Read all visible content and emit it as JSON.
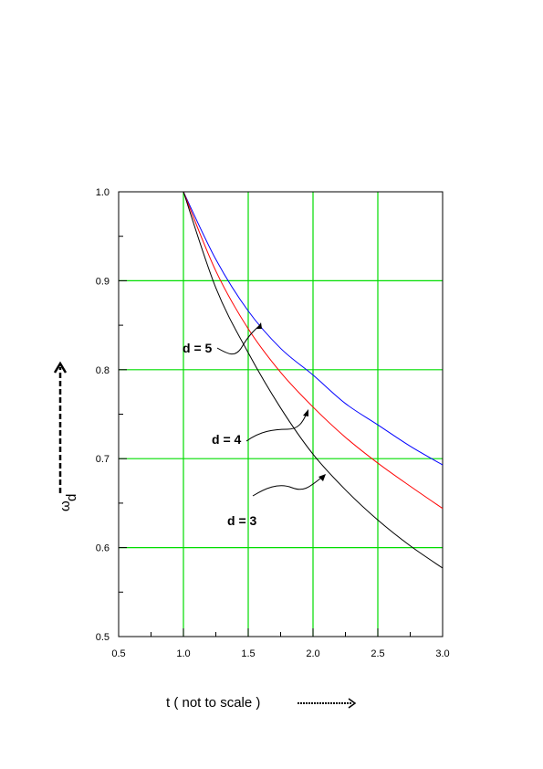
{
  "chart_data": {
    "type": "line",
    "title": "",
    "xlabel": "t  ( not to scale )",
    "ylabel_symbol": "ω",
    "ylabel_subscript": "d",
    "xlim": [
      0.5,
      3.0
    ],
    "ylim": [
      0.5,
      1.0
    ],
    "x_ticks": [
      "0.5",
      "1.0",
      "1.5",
      "2.0",
      "2.5",
      "3.0"
    ],
    "y_ticks": [
      "0.5",
      "0.6",
      "0.7",
      "0.8",
      "0.9",
      "1.0"
    ],
    "grid": true,
    "grid_color": "#00dd00",
    "series": [
      {
        "name": "d = 5",
        "color": "#0000ff",
        "x": [
          1.0,
          1.25,
          1.5,
          1.75,
          2.0,
          2.25,
          2.5,
          2.75,
          3.0
        ],
        "y": [
          1.0,
          0.924,
          0.866,
          0.824,
          0.794,
          0.762,
          0.738,
          0.714,
          0.693
        ]
      },
      {
        "name": "d = 4",
        "color": "#ff0000",
        "x": [
          1.0,
          1.25,
          1.5,
          1.75,
          2.0,
          2.25,
          2.5,
          2.75,
          3.0
        ],
        "y": [
          1.0,
          0.911,
          0.846,
          0.797,
          0.758,
          0.724,
          0.695,
          0.669,
          0.644
        ]
      },
      {
        "name": "d = 3",
        "color": "#000000",
        "x": [
          1.0,
          1.25,
          1.5,
          1.75,
          2.0,
          2.25,
          2.5,
          2.75,
          3.0
        ],
        "y": [
          1.0,
          0.892,
          0.819,
          0.757,
          0.705,
          0.665,
          0.631,
          0.602,
          0.577
        ]
      }
    ]
  }
}
